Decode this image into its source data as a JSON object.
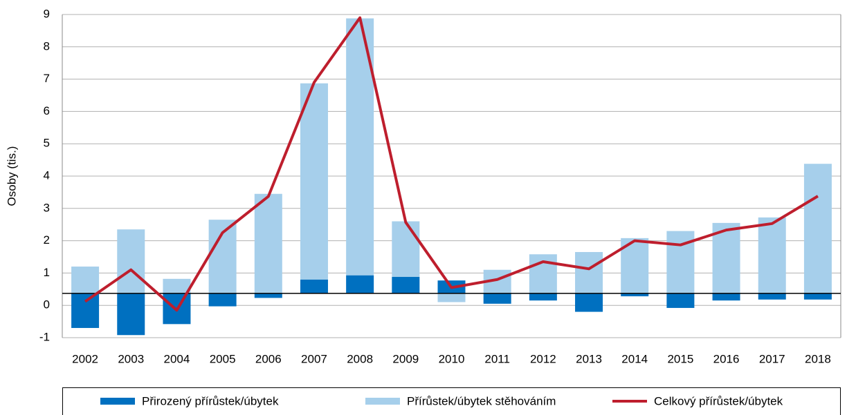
{
  "chart_data": {
    "type": "bar",
    "y_label": "Osoby (tis.)",
    "categories": [
      "2002",
      "2003",
      "2004",
      "2005",
      "2006",
      "2007",
      "2008",
      "2009",
      "2010",
      "2011",
      "2012",
      "2013",
      "2014",
      "2015",
      "2016",
      "2017",
      "2018"
    ],
    "series": [
      {
        "name": "Přirozený přírůstek/úbytek",
        "color": "#0070c0",
        "kind": "bar",
        "values": [
          -1.07,
          -1.29,
          -0.95,
          -0.4,
          -0.14,
          0.43,
          0.56,
          0.51,
          0.4,
          -0.32,
          -0.22,
          -0.57,
          -0.09,
          -0.45,
          -0.22,
          -0.19,
          -0.19
        ]
      },
      {
        "name": "Přírůstek/úbytek stěhováním",
        "color": "#a6cfeb",
        "kind": "bar",
        "values": [
          0.83,
          1.98,
          0.45,
          2.28,
          3.08,
          6.07,
          7.95,
          1.72,
          -0.27,
          0.73,
          1.21,
          1.28,
          1.71,
          1.93,
          2.18,
          2.35,
          4.01
        ]
      },
      {
        "name": "Celkový přírůstek/úbytek",
        "color": "#be1e2d",
        "kind": "line",
        "values": [
          0.12,
          1.1,
          -0.15,
          2.25,
          3.37,
          6.9,
          8.9,
          2.57,
          0.55,
          0.8,
          1.35,
          1.13,
          2.0,
          1.87,
          2.33,
          2.53,
          3.38
        ]
      }
    ],
    "bar_base": 0.37,
    "ylim": [
      -1,
      9
    ],
    "yticks": [
      -1,
      0,
      1,
      2,
      3,
      4,
      5,
      6,
      7,
      8,
      9
    ],
    "grid": true,
    "legend": "bottom"
  }
}
